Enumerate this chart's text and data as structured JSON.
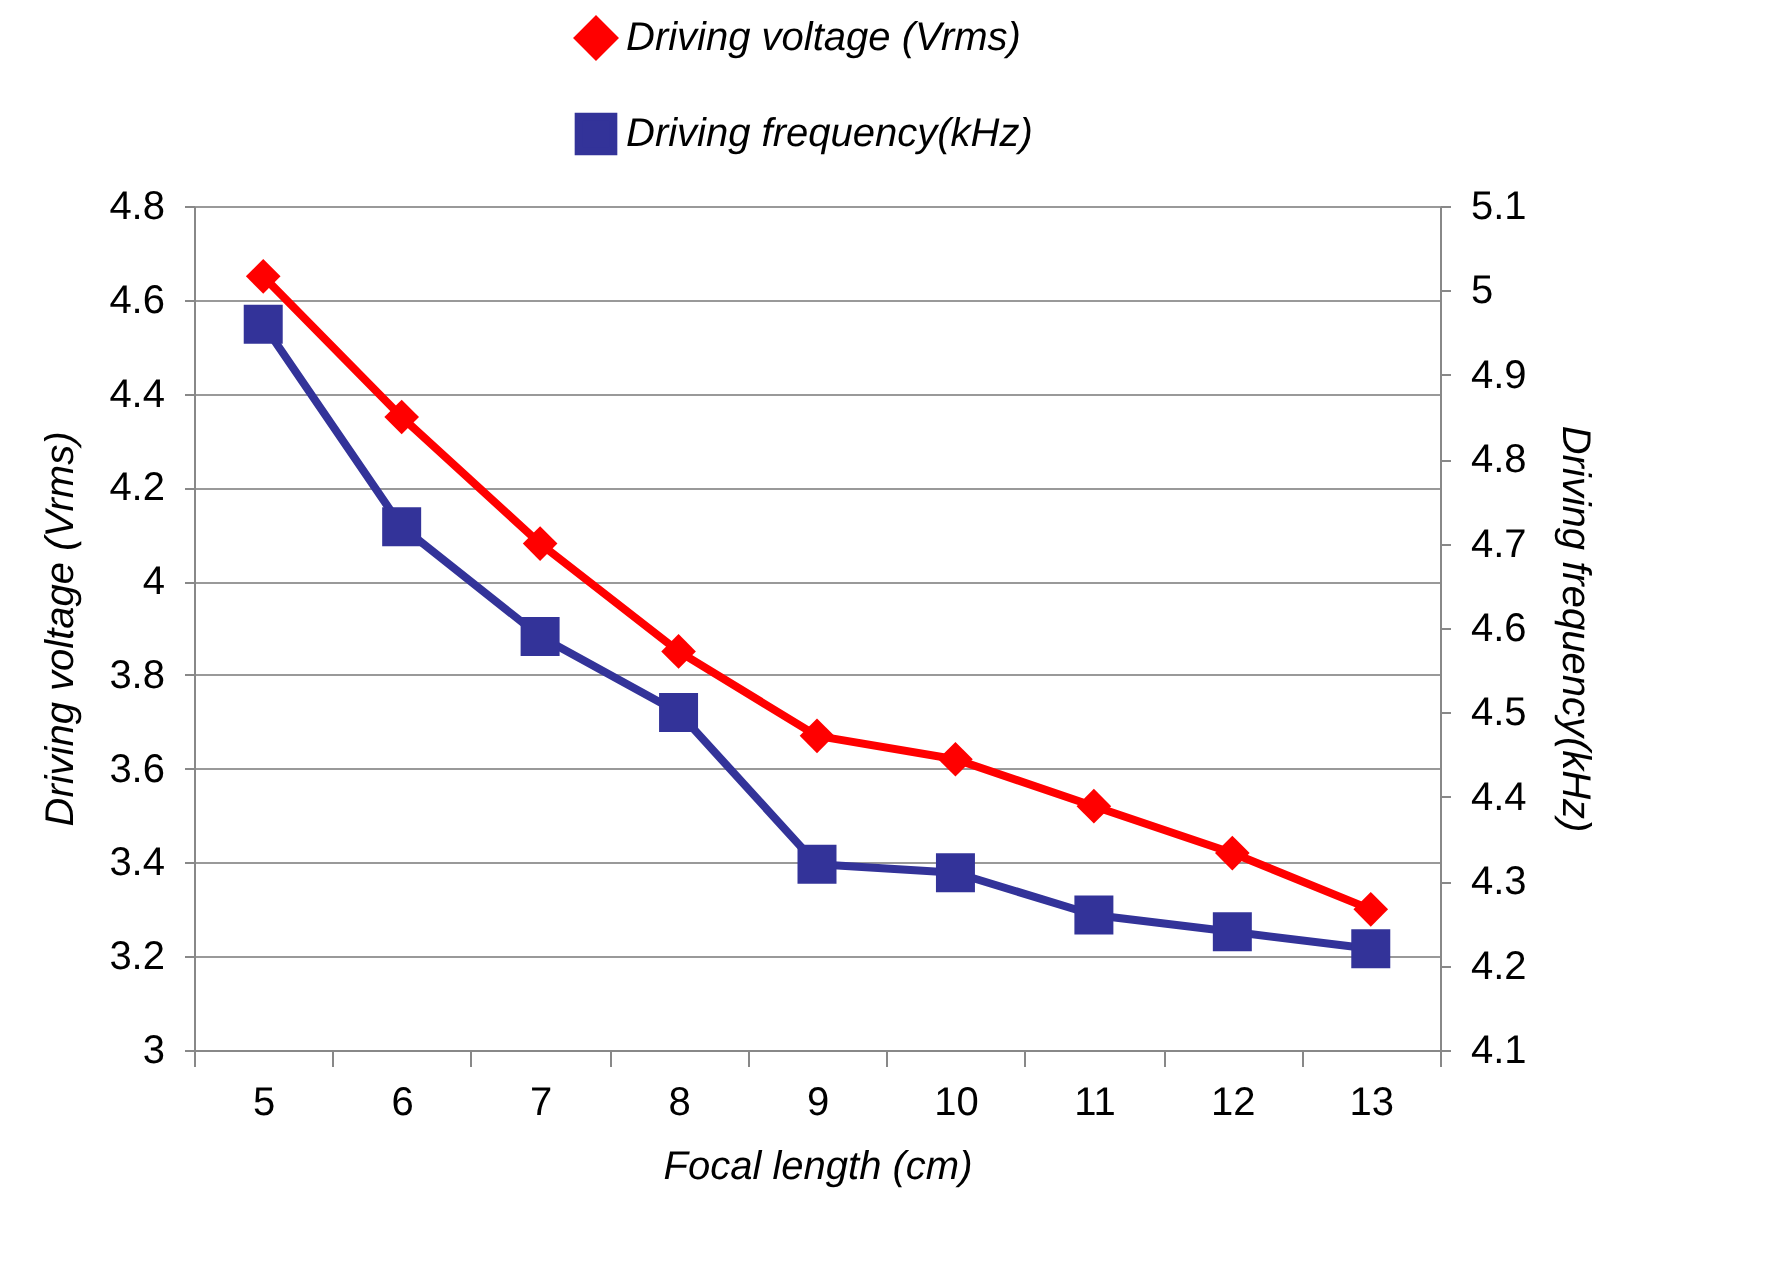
{
  "chart_data": {
    "type": "line",
    "xlabel": "Focal length (cm)",
    "ylabel": "Driving voltage (Vrms)",
    "y2label": "Driving frequency(kHz)",
    "categories": [
      "5",
      "6",
      "7",
      "8",
      "9",
      "10",
      "11",
      "12",
      "13"
    ],
    "series": [
      {
        "name": "Driving voltage (Vrms)",
        "color": "#ff0000",
        "marker": "diamond",
        "values": [
          4.65,
          4.35,
          4.08,
          3.85,
          3.67,
          3.62,
          3.52,
          3.42,
          3.3
        ]
      },
      {
        "name": "Driving frequency(kHz)",
        "color": "#333399",
        "marker": "square",
        "axis": "y2",
        "values": [
          4.96,
          4.72,
          4.59,
          4.5,
          4.32,
          4.31,
          4.26,
          4.24,
          4.22
        ]
      }
    ],
    "ylim": [
      3,
      4.8
    ],
    "yticks": [
      3,
      3.2,
      3.4,
      3.6,
      3.8,
      4,
      4.2,
      4.4,
      4.6,
      4.8
    ],
    "y2lim": [
      4.1,
      5.1
    ],
    "y2ticks": [
      4.1,
      4.2,
      4.3,
      4.4,
      4.5,
      4.6,
      4.7,
      4.8,
      4.9,
      5,
      5.1
    ],
    "grid": "y",
    "legend": "top",
    "line_style": "solid"
  }
}
